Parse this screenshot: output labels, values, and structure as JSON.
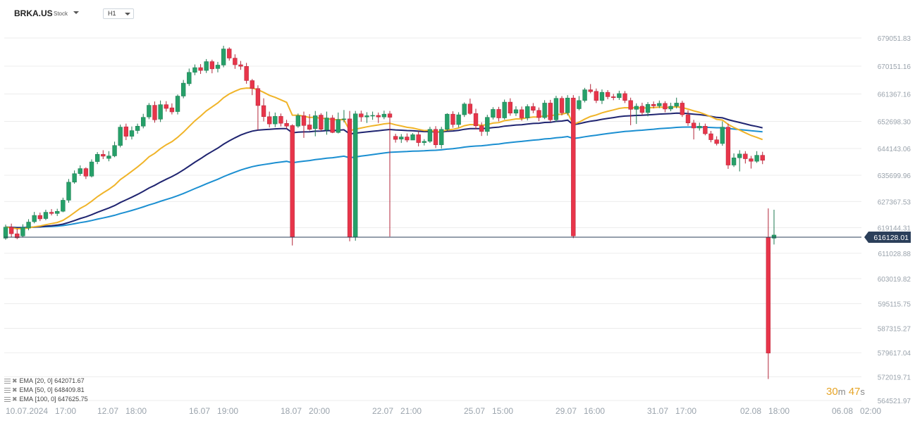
{
  "header": {
    "symbol": "BRKA.US",
    "type_label": "Stock",
    "timeframe": "H1"
  },
  "countdown": {
    "minutes": "30",
    "m_unit": "m",
    "seconds": "47",
    "s_unit": "s"
  },
  "indicators": [
    {
      "label": "EMA",
      "params": "[20,  0]",
      "value": "642071.67"
    },
    {
      "label": "EMA",
      "params": "[50,  0]",
      "value": "648409.81"
    },
    {
      "label": "EMA",
      "params": "[100,  0]",
      "value": "647625.75"
    }
  ],
  "colors": {
    "up": "#26a069",
    "down": "#e8354a",
    "ema20": "#f0b429",
    "ema50": "#1f2470",
    "ema100": "#1b8fd1",
    "price_line": "#2b3f5a",
    "price_badge": "#2b3f5a",
    "timer": "#e6a426"
  },
  "chart_data": {
    "type": "candlestick",
    "y_ticks": [
      679051.83,
      670151.16,
      661367.16,
      652698.3,
      644143.06,
      635699.96,
      627367.53,
      619144.31,
      611028.88,
      603019.82,
      595115.75,
      587315.27,
      579617.04,
      572019.71,
      564521.97
    ],
    "y_tick_labels": [
      "679051.83",
      "670151.16",
      "661367.16",
      "652698.30",
      "644143.06",
      "635699.96",
      "627367.53",
      "619144.31",
      "611028.88",
      "603019.82",
      "595115.75",
      "587315.27",
      "579617.04",
      "572019.71",
      "564521.97"
    ],
    "ylim": [
      561000,
      683000
    ],
    "x_tick_labels": [
      "10.07.2024   17:00",
      "12.07   18:00",
      "16.07   19:00",
      "18.07   20:00",
      "22.07   21:00",
      "25.07   15:00",
      "29.07   16:00",
      "31.07   17:00",
      "02.08   18:00",
      "06.08   02:00"
    ],
    "last_price": 616128.01,
    "last_price_label": "616128.01",
    "candles": [
      [
        615800,
        619300,
        620100,
        615300
      ],
      [
        619300,
        617200,
        620400,
        616200
      ],
      [
        617200,
        615900,
        618800,
        615500
      ],
      [
        616500,
        619200,
        620200,
        616000
      ],
      [
        619000,
        620900,
        621800,
        618300
      ],
      [
        621000,
        623000,
        624100,
        620500
      ],
      [
        623000,
        621900,
        623900,
        621200
      ],
      [
        622000,
        624000,
        624800,
        621500
      ],
      [
        624000,
        623600,
        625000,
        623000
      ],
      [
        623600,
        624300,
        625100,
        622800
      ],
      [
        624300,
        627800,
        628600,
        624000
      ],
      [
        627800,
        633500,
        634500,
        627000
      ],
      [
        633500,
        636200,
        637200,
        633000
      ],
      [
        636200,
        637800,
        638800,
        635500
      ],
      [
        637800,
        635400,
        638200,
        634500
      ],
      [
        635400,
        639900,
        640700,
        635000
      ],
      [
        640000,
        642300,
        643000,
        639200
      ],
      [
        642300,
        641700,
        643600,
        640800
      ],
      [
        641000,
        641800,
        643300,
        640100
      ],
      [
        641800,
        645100,
        646300,
        641400
      ],
      [
        645100,
        650900,
        651700,
        644500
      ],
      [
        651000,
        648000,
        652000,
        646800
      ],
      [
        648000,
        649800,
        651100,
        647000
      ],
      [
        649800,
        651200,
        652000,
        648800
      ],
      [
        651200,
        654000,
        655100,
        650500
      ],
      [
        654100,
        657800,
        658500,
        653400
      ],
      [
        657800,
        653200,
        659000,
        652300
      ],
      [
        653400,
        658000,
        659300,
        652500
      ],
      [
        658000,
        656800,
        659100,
        655800
      ],
      [
        657000,
        655700,
        658400,
        654900
      ],
      [
        655800,
        660700,
        661200,
        654900
      ],
      [
        660700,
        664800,
        665800,
        660000
      ],
      [
        664600,
        668200,
        669400,
        663900
      ],
      [
        668200,
        669700,
        670700,
        667300
      ],
      [
        669700,
        668800,
        670800,
        667700
      ],
      [
        668800,
        671600,
        672400,
        668000
      ],
      [
        671600,
        669300,
        672200,
        667900
      ],
      [
        669400,
        670500,
        671500,
        668200
      ],
      [
        670500,
        675600,
        676600,
        669800
      ],
      [
        675600,
        672700,
        676100,
        671900
      ],
      [
        672700,
        670600,
        673900,
        669300
      ],
      [
        670600,
        670100,
        671800,
        669000
      ],
      [
        670100,
        665600,
        671200,
        664600
      ],
      [
        665600,
        663100,
        666100,
        661000
      ],
      [
        663100,
        657700,
        664100,
        650000
      ],
      [
        657700,
        654200,
        660000,
        652700
      ],
      [
        654200,
        651900,
        655800,
        650800
      ],
      [
        651900,
        654300,
        655500,
        650900
      ],
      [
        654300,
        652100,
        655200,
        651100
      ],
      [
        652100,
        651200,
        653200,
        650400
      ],
      [
        651400,
        616100,
        651800,
        613500
      ],
      [
        651200,
        654500,
        655200,
        650700
      ],
      [
        654500,
        651400,
        655800,
        647500
      ],
      [
        651600,
        650200,
        655000,
        649800
      ],
      [
        650400,
        654500,
        656000,
        648000
      ],
      [
        654700,
        650200,
        655300,
        649700
      ],
      [
        650000,
        653800,
        655800,
        648500
      ],
      [
        653800,
        649200,
        654700,
        649000
      ],
      [
        649200,
        653300,
        655500,
        648900
      ],
      [
        653300,
        653500,
        656300,
        652400
      ],
      [
        653500,
        616200,
        656000,
        614800
      ],
      [
        616100,
        655100,
        656000,
        615000
      ],
      [
        655100,
        654100,
        656100,
        652600
      ],
      [
        654100,
        654500,
        655600,
        652200
      ],
      [
        654500,
        654600,
        655800,
        653200
      ],
      [
        654600,
        654100,
        655500,
        652200
      ],
      [
        654100,
        655000,
        656100,
        653400
      ],
      [
        655100,
        654000,
        656000,
        616300
      ],
      [
        648000,
        647000,
        648800,
        646000
      ],
      [
        647100,
        647800,
        648700,
        645900
      ],
      [
        647800,
        646800,
        648900,
        646100
      ],
      [
        646800,
        648500,
        649000,
        647000
      ],
      [
        648500,
        646000,
        649600,
        644800
      ],
      [
        646000,
        646400,
        647100,
        645100
      ],
      [
        646400,
        650200,
        651000,
        645900
      ],
      [
        650200,
        645300,
        651200,
        644300
      ],
      [
        645300,
        650200,
        651000,
        644100
      ],
      [
        650200,
        655000,
        655300,
        649800
      ],
      [
        655000,
        651700,
        655900,
        650700
      ],
      [
        651700,
        654800,
        655600,
        650800
      ],
      [
        654800,
        658200,
        658700,
        654100
      ],
      [
        658200,
        655200,
        659900,
        654800
      ],
      [
        655200,
        651300,
        656700,
        650200
      ],
      [
        651300,
        649500,
        652400,
        648100
      ],
      [
        649500,
        654000,
        654800,
        648200
      ],
      [
        654000,
        656500,
        657200,
        653300
      ],
      [
        656500,
        653800,
        657300,
        652700
      ],
      [
        653800,
        658800,
        659600,
        653300
      ],
      [
        658800,
        655300,
        660000,
        654500
      ],
      [
        655300,
        656400,
        657500,
        654400
      ],
      [
        656400,
        653800,
        657400,
        652900
      ],
      [
        653800,
        657400,
        658100,
        653000
      ],
      [
        657400,
        656200,
        658500,
        655300
      ],
      [
        656200,
        653900,
        657100,
        652800
      ],
      [
        653900,
        658500,
        659400,
        653400
      ],
      [
        658500,
        653200,
        659500,
        652600
      ],
      [
        653200,
        660000,
        660800,
        652500
      ],
      [
        660000,
        655400,
        660700,
        654600
      ],
      [
        655400,
        660100,
        661000,
        654600
      ],
      [
        660100,
        616500,
        661000,
        615800
      ],
      [
        656700,
        659300,
        660700,
        656200
      ],
      [
        659300,
        662700,
        663300,
        658700
      ],
      [
        662700,
        662100,
        664500,
        661600
      ],
      [
        662200,
        659300,
        663100,
        658500
      ],
      [
        659300,
        661900,
        662800,
        658200
      ],
      [
        661900,
        660500,
        662600,
        659700
      ],
      [
        660500,
        660200,
        661400,
        659400
      ],
      [
        660200,
        661500,
        662400,
        659500
      ],
      [
        661500,
        659300,
        662300,
        658500
      ],
      [
        659300,
        656500,
        660200,
        651500
      ],
      [
        656500,
        657500,
        658400,
        651900
      ],
      [
        657500,
        655500,
        658600,
        654700
      ],
      [
        655500,
        658100,
        658800,
        654300
      ],
      [
        658100,
        657600,
        659000,
        656800
      ],
      [
        657600,
        658400,
        659300,
        656900
      ],
      [
        658400,
        656600,
        659100,
        655600
      ],
      [
        656600,
        657500,
        658600,
        655900
      ],
      [
        657500,
        658500,
        660200,
        656800
      ],
      [
        658500,
        654800,
        659200,
        654100
      ],
      [
        654800,
        652200,
        656200,
        651300
      ],
      [
        652200,
        650600,
        653200,
        647000
      ],
      [
        650600,
        651200,
        652300,
        649800
      ],
      [
        651200,
        648800,
        652000,
        648300
      ],
      [
        648800,
        646900,
        649700,
        646100
      ],
      [
        646900,
        645700,
        648000,
        645100
      ],
      [
        645700,
        650900,
        652700,
        645000
      ],
      [
        650900,
        638900,
        652000,
        637700
      ],
      [
        638900,
        641200,
        642600,
        638300
      ],
      [
        641200,
        642400,
        643600,
        636900
      ],
      [
        642400,
        640900,
        643300,
        639400
      ],
      [
        640900,
        640100,
        641800,
        637800
      ],
      [
        640100,
        642000,
        643300,
        639600
      ],
      [
        642000,
        640400,
        643100,
        639200
      ],
      [
        616000,
        579500,
        625200,
        571300
      ],
      [
        615800,
        616800,
        624800,
        613800
      ]
    ]
  }
}
